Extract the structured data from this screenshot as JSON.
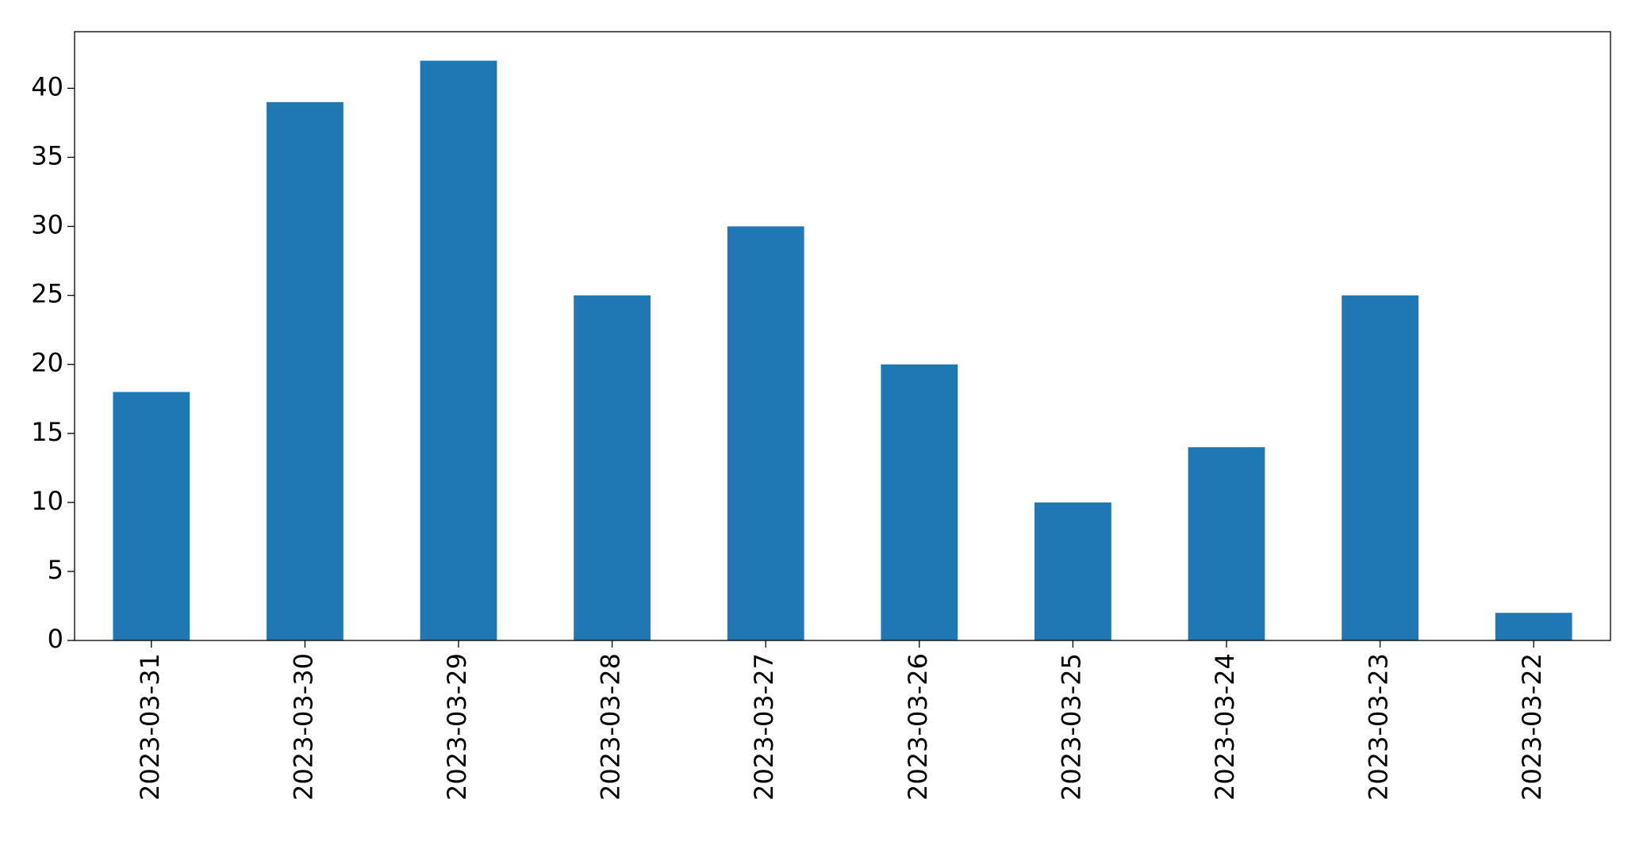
{
  "chart_data": {
    "type": "bar",
    "categories": [
      "2023-03-31",
      "2023-03-30",
      "2023-03-29",
      "2023-03-28",
      "2023-03-27",
      "2023-03-26",
      "2023-03-25",
      "2023-03-24",
      "2023-03-23",
      "2023-03-22"
    ],
    "values": [
      18,
      39,
      42,
      25,
      30,
      20,
      10,
      14,
      25,
      2
    ],
    "color": "#1f77b4",
    "ylim": [
      0,
      44.1
    ],
    "yticks": [
      0,
      5,
      10,
      15,
      20,
      25,
      30,
      35,
      40
    ],
    "grid": false
  }
}
